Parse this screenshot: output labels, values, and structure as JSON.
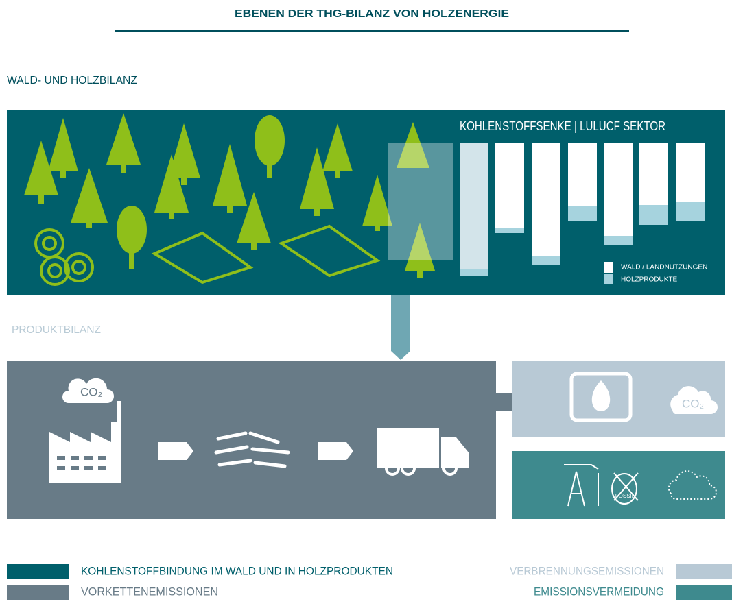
{
  "title": "EBENEN DER THG-BILANZ VON HOLZENERGIE",
  "section_forest": "WALD- UND HOLZBILANZ",
  "section_product": "PRODUKTBILANZ",
  "forest_panel": {
    "chart_title": "KOHLENSTOFFSENKE | LULUCF SEKTOR",
    "legend": [
      "WALD / LANDNUTZUNGEN",
      "HOLZPRODUKTE"
    ]
  },
  "product_panel": {
    "co2_label": "CO₂"
  },
  "combustion_panel": {
    "co2_label": "CO₂"
  },
  "avoidance_panel": {
    "fossil_label": "FOSSIL"
  },
  "legend": {
    "items": [
      "KOHLENSTOFFBINDUNG IM WALD UND IN HOLZPRODUKTEN",
      "VORKETTENEMISSIONEN",
      "VERBRENNUNGSEMISSIONEN",
      "EMISSIONSVERMEIDUNG"
    ]
  }
}
